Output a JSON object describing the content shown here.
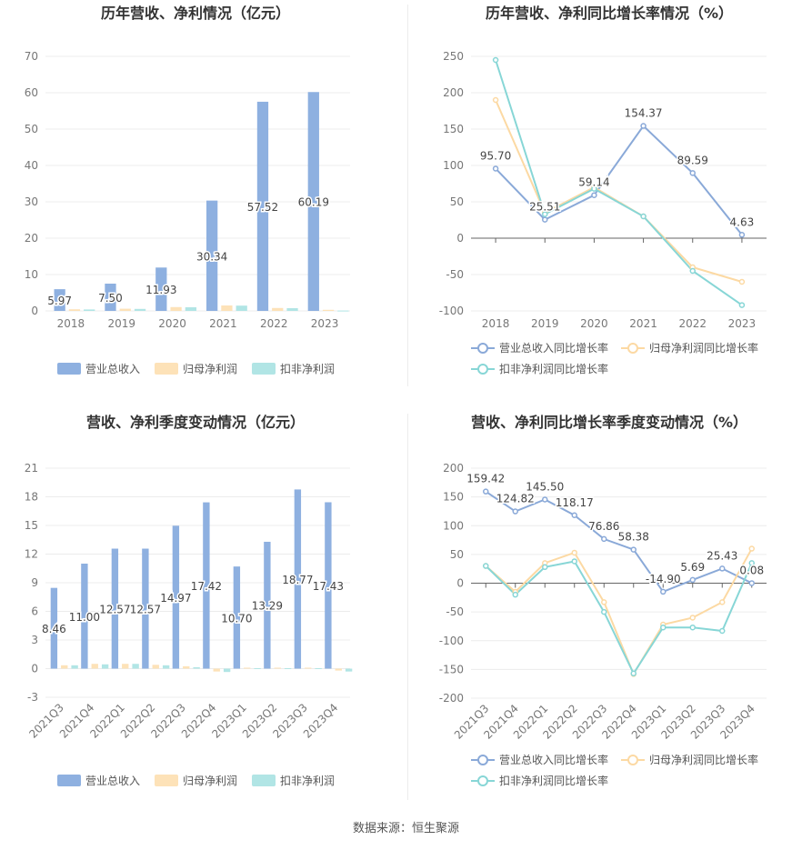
{
  "colors": {
    "revenue": "#8eb0e0",
    "parent_profit": "#fde2b8",
    "deducted_profit": "#b1e5e5",
    "rev_line": "#8aa9d8",
    "parent_line": "#fcd9a3",
    "deducted_line": "#87d6d6",
    "grid": "#ececec",
    "axis_text": "#777777",
    "title": "#333333",
    "value_label": "#444444"
  },
  "legend": {
    "bar": [
      "营业总收入",
      "归母净利润",
      "扣非净利润"
    ],
    "line": [
      "营业总收入同比增长率",
      "归母净利润同比增长率",
      "扣非净利润同比增长率"
    ]
  },
  "source": "数据来源：恒生聚源",
  "chart_data": [
    {
      "type": "bar",
      "title": "历年营收、净利情况（亿元）",
      "categories": [
        "2018",
        "2019",
        "2020",
        "2021",
        "2022",
        "2023"
      ],
      "ylim": [
        0,
        70
      ],
      "yticks": [
        0,
        10,
        20,
        30,
        40,
        50,
        60,
        70
      ],
      "series": [
        {
          "name": "营业总收入",
          "values": [
            5.97,
            7.5,
            11.93,
            30.34,
            57.52,
            60.19
          ]
        },
        {
          "name": "归母净利润",
          "values": [
            0.45,
            0.6,
            1.05,
            1.5,
            0.8,
            0.3
          ]
        },
        {
          "name": "扣非净利润",
          "values": [
            0.4,
            0.55,
            1.0,
            1.45,
            0.75,
            0.1
          ]
        }
      ],
      "labels": [
        "5.97",
        "7.50",
        "11.93",
        "30.34",
        "57.52",
        "60.19"
      ],
      "legend_position": "bottom"
    },
    {
      "type": "line",
      "title": "历年营收、净利同比增长率情况（%）",
      "categories": [
        "2018",
        "2019",
        "2020",
        "2021",
        "2022",
        "2023"
      ],
      "ylim": [
        -100,
        250
      ],
      "yticks": [
        -100,
        -50,
        0,
        50,
        100,
        150,
        200,
        250
      ],
      "series": [
        {
          "name": "营业总收入同比增长率",
          "values": [
            95.7,
            25.51,
            59.14,
            154.37,
            89.59,
            4.63
          ]
        },
        {
          "name": "归母净利润同比增长率",
          "values": [
            190,
            35,
            70,
            30,
            -40,
            -60
          ]
        },
        {
          "name": "扣非净利润同比增长率",
          "values": [
            245,
            33,
            68,
            30,
            -45,
            -92
          ]
        }
      ],
      "labels": [
        "95.70",
        "25.51",
        "59.14",
        "154.37",
        "89.59",
        "4.63"
      ],
      "legend_position": "bottom"
    },
    {
      "type": "bar",
      "title": "营收、净利季度变动情况（亿元）",
      "categories": [
        "2021Q3",
        "2021Q4",
        "2022Q1",
        "2022Q2",
        "2022Q3",
        "2022Q4",
        "2023Q1",
        "2023Q2",
        "2023Q3",
        "2023Q4"
      ],
      "ylim": [
        -3,
        21
      ],
      "yticks": [
        -3,
        0,
        3,
        6,
        9,
        12,
        15,
        18,
        21
      ],
      "series": [
        {
          "name": "营业总收入",
          "values": [
            8.46,
            11.0,
            12.57,
            12.57,
            14.97,
            17.42,
            10.7,
            13.29,
            18.77,
            17.43
          ]
        },
        {
          "name": "归母净利润",
          "values": [
            0.35,
            0.5,
            0.5,
            0.4,
            0.25,
            -0.3,
            0.1,
            0.1,
            0.1,
            -0.2
          ]
        },
        {
          "name": "扣非净利润",
          "values": [
            0.35,
            0.45,
            0.5,
            0.35,
            0.15,
            -0.35,
            0.05,
            0.05,
            0.05,
            -0.3
          ]
        }
      ],
      "labels": [
        "8.46",
        "11.00",
        "12.57",
        "12.57",
        "14.97",
        "17.42",
        "10.70",
        "13.29",
        "18.77",
        "17.43"
      ],
      "legend_position": "bottom"
    },
    {
      "type": "line",
      "title": "营收、净利同比增长率季度变动情况（%）",
      "categories": [
        "2021Q3",
        "2021Q4",
        "2022Q1",
        "2022Q2",
        "2022Q3",
        "2022Q4",
        "2023Q1",
        "2023Q2",
        "2023Q3",
        "2023Q4"
      ],
      "ylim": [
        -200,
        200
      ],
      "yticks": [
        -200,
        -150,
        -100,
        -50,
        0,
        50,
        100,
        150,
        200
      ],
      "series": [
        {
          "name": "营业总收入同比增长率",
          "values": [
            159.42,
            124.82,
            145.5,
            118.17,
            76.86,
            58.38,
            -14.9,
            5.69,
            25.43,
            0.08
          ]
        },
        {
          "name": "归母净利润同比增长率",
          "values": [
            30,
            -15,
            35,
            53,
            -33,
            -158,
            -72,
            -60,
            -33,
            60
          ]
        },
        {
          "name": "扣非净利润同比增长率",
          "values": [
            30,
            -20,
            28,
            38,
            -50,
            -157,
            -77,
            -77,
            -83,
            35
          ]
        }
      ],
      "labels": [
        "159.42",
        "124.82",
        "145.50",
        "118.17",
        "76.86",
        "58.38",
        "-14.90",
        "5.69",
        "25.43",
        "0.08"
      ],
      "legend_position": "bottom"
    }
  ]
}
